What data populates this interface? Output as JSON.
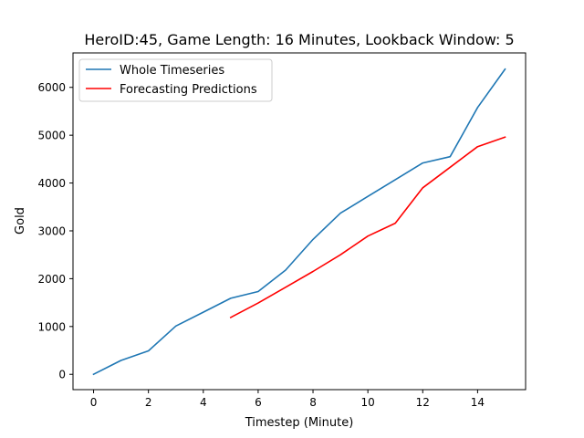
{
  "chart_data": {
    "type": "line",
    "title": "HeroID:45, Game Length: 16 Minutes, Lookback Window: 5",
    "xlabel": "Timestep (Minute)",
    "ylabel": "Gold",
    "xlim": [
      -0.75,
      15.75
    ],
    "ylim": [
      -320,
      6720
    ],
    "xticks": [
      0,
      2,
      4,
      6,
      8,
      10,
      12,
      14
    ],
    "yticks": [
      0,
      1000,
      2000,
      3000,
      4000,
      5000,
      6000
    ],
    "legend_position": "upper left",
    "series": [
      {
        "name": "Whole Timeseries",
        "color": "#1f77b4",
        "x": [
          0,
          1,
          2,
          3,
          4,
          5,
          6,
          7,
          8,
          9,
          10,
          11,
          12,
          13,
          14,
          15
        ],
        "y": [
          0,
          290,
          490,
          1010,
          1300,
          1590,
          1730,
          2180,
          2820,
          3370,
          3720,
          4070,
          4420,
          4550,
          5580,
          6380
        ]
      },
      {
        "name": "Forecasting Predictions",
        "color": "#ff0000",
        "x": [
          5,
          6,
          7,
          8,
          9,
          10,
          11,
          12,
          13,
          14,
          15
        ],
        "y": [
          1190,
          1490,
          1820,
          2150,
          2500,
          2890,
          3160,
          3900,
          4330,
          4760,
          4960
        ]
      }
    ]
  }
}
